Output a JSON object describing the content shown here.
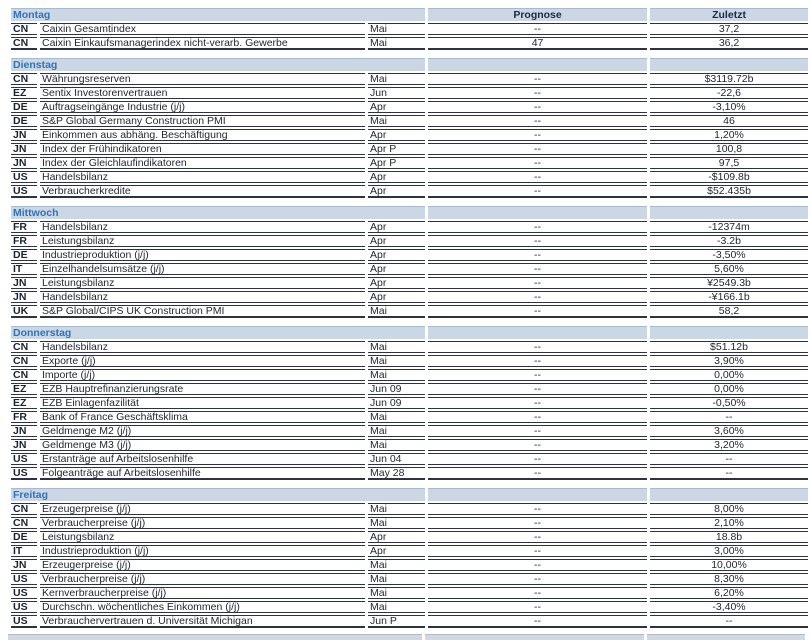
{
  "colors": {
    "band_background": "#CCD7E5",
    "day_label_blue": "#2E74B9",
    "column_header_navy": "#1B2A4A",
    "body_text": "#1F2433",
    "row_line": "#2E3342"
  },
  "table": {
    "columns": {
      "prognose": "Prognose",
      "zuletzt": "Zuletzt"
    },
    "sections": [
      {
        "day": "Montag",
        "rows": [
          {
            "country": "CN",
            "event": "Caixin Gesamtindex",
            "period": "Mai",
            "prognose": "--",
            "zuletzt": "37,2"
          },
          {
            "country": "CN",
            "event": "Caixin Einkaufsmanagerindex nicht-verarb. Gewerbe",
            "period": "Mai",
            "prognose": "47",
            "zuletzt": "36,2"
          }
        ]
      },
      {
        "day": "Dienstag",
        "rows": [
          {
            "country": "CN",
            "event": "Währungsreserven",
            "period": "Mai",
            "prognose": "--",
            "zuletzt": "$3119.72b"
          },
          {
            "country": "EZ",
            "event": "Sentix Investorenvertrauen",
            "period": "Jun",
            "prognose": "--",
            "zuletzt": "-22,6"
          },
          {
            "country": "DE",
            "event": "Auftragseingänge Industrie (j/j)",
            "period": "Apr",
            "prognose": "--",
            "zuletzt": "-3,10%"
          },
          {
            "country": "DE",
            "event": "S&P Global Germany Construction PMI",
            "period": "Mai",
            "prognose": "--",
            "zuletzt": "46"
          },
          {
            "country": "JN",
            "event": "Einkommen aus abhäng. Beschäftigung",
            "period": "Apr",
            "prognose": "--",
            "zuletzt": "1,20%"
          },
          {
            "country": "JN",
            "event": "Index der Frühindikatoren",
            "period": "Apr P",
            "prognose": "--",
            "zuletzt": "100,8"
          },
          {
            "country": "JN",
            "event": "Index der Gleichlaufindikatoren",
            "period": "Apr P",
            "prognose": "--",
            "zuletzt": "97,5"
          },
          {
            "country": "US",
            "event": "Handelsbilanz",
            "period": "Apr",
            "prognose": "--",
            "zuletzt": "-$109.8b"
          },
          {
            "country": "US",
            "event": "Verbraucherkredite",
            "period": "Apr",
            "prognose": "--",
            "zuletzt": "$52.435b"
          }
        ]
      },
      {
        "day": "Mittwoch",
        "rows": [
          {
            "country": "FR",
            "event": "Handelsbilanz",
            "period": "Apr",
            "prognose": "--",
            "zuletzt": "-12374m"
          },
          {
            "country": "FR",
            "event": "Leistungsbilanz",
            "period": "Apr",
            "prognose": "--",
            "zuletzt": "-3.2b"
          },
          {
            "country": "DE",
            "event": "Industrieproduktion (j/j)",
            "period": "Apr",
            "prognose": "--",
            "zuletzt": "-3,50%"
          },
          {
            "country": "IT",
            "event": "Einzelhandelsumsätze (j/j)",
            "period": "Apr",
            "prognose": "--",
            "zuletzt": "5,60%"
          },
          {
            "country": "JN",
            "event": "Leistungsbilanz",
            "period": "Apr",
            "prognose": "--",
            "zuletzt": "¥2549.3b"
          },
          {
            "country": "JN",
            "event": "Handelsbilanz",
            "period": "Apr",
            "prognose": "--",
            "zuletzt": "-¥166.1b"
          },
          {
            "country": "UK",
            "event": "S&P Global/CIPS UK Construction PMI",
            "period": "Mai",
            "prognose": "--",
            "zuletzt": "58,2"
          }
        ]
      },
      {
        "day": "Donnerstag",
        "rows": [
          {
            "country": "CN",
            "event": "Handelsbilanz",
            "period": "Mai",
            "prognose": "--",
            "zuletzt": "$51.12b"
          },
          {
            "country": "CN",
            "event": "Exporte (j/j)",
            "period": "Mai",
            "prognose": "--",
            "zuletzt": "3,90%"
          },
          {
            "country": "CN",
            "event": "Importe (j/j)",
            "period": "Mai",
            "prognose": "--",
            "zuletzt": "0,00%"
          },
          {
            "country": "EZ",
            "event": "EZB Hauptrefinanzierungsrate",
            "period": "Jun 09",
            "prognose": "--",
            "zuletzt": "0,00%"
          },
          {
            "country": "EZ",
            "event": "EZB Einlagenfazilität",
            "period": "Jun 09",
            "prognose": "--",
            "zuletzt": "-0,50%"
          },
          {
            "country": "FR",
            "event": "Bank of France Geschäftsklima",
            "period": "Mai",
            "prognose": "--",
            "zuletzt": "--"
          },
          {
            "country": "JN",
            "event": "Geldmenge M2 (j/j)",
            "period": "Mai",
            "prognose": "--",
            "zuletzt": "3,60%"
          },
          {
            "country": "JN",
            "event": "Geldmenge M3 (j/j)",
            "period": "Mai",
            "prognose": "--",
            "zuletzt": "3,20%"
          },
          {
            "country": "US",
            "event": "Erstanträge auf Arbeitslosenhilfe",
            "period": "Jun 04",
            "prognose": "--",
            "zuletzt": "--"
          },
          {
            "country": "US",
            "event": "Folgeanträge auf Arbeitslosenhilfe",
            "period": "May 28",
            "prognose": "--",
            "zuletzt": "--"
          }
        ]
      },
      {
        "day": "Freitag",
        "rows": [
          {
            "country": "CN",
            "event": "Erzeugerpreise (j/j)",
            "period": "Mai",
            "prognose": "--",
            "zuletzt": "8,00%"
          },
          {
            "country": "CN",
            "event": "Verbraucherpreise (j/j)",
            "period": "Mai",
            "prognose": "--",
            "zuletzt": "2,10%"
          },
          {
            "country": "DE",
            "event": "Leistungsbilanz",
            "period": "Apr",
            "prognose": "--",
            "zuletzt": "18.8b"
          },
          {
            "country": "IT",
            "event": "Industrieproduktion (j/j)",
            "period": "Apr",
            "prognose": "--",
            "zuletzt": "3,00%"
          },
          {
            "country": "JN",
            "event": "Erzeugerpreise (j/j)",
            "period": "Mai",
            "prognose": "--",
            "zuletzt": "10,00%"
          },
          {
            "country": "US",
            "event": "Verbraucherpreise (j/j)",
            "period": "Mai",
            "prognose": "--",
            "zuletzt": "8,30%"
          },
          {
            "country": "US",
            "event": "Kernverbraucherpreise (j/j)",
            "period": "Mai",
            "prognose": "--",
            "zuletzt": "6,20%"
          },
          {
            "country": "US",
            "event": "Durchschn. wöchentliches Einkommen (j/j)",
            "period": "Mai",
            "prognose": "--",
            "zuletzt": "-3,40%"
          },
          {
            "country": "US",
            "event": "Verbrauchervertrauen d. Universität Michigan",
            "period": "Jun P",
            "prognose": "--",
            "zuletzt": "--"
          }
        ]
      }
    ]
  }
}
